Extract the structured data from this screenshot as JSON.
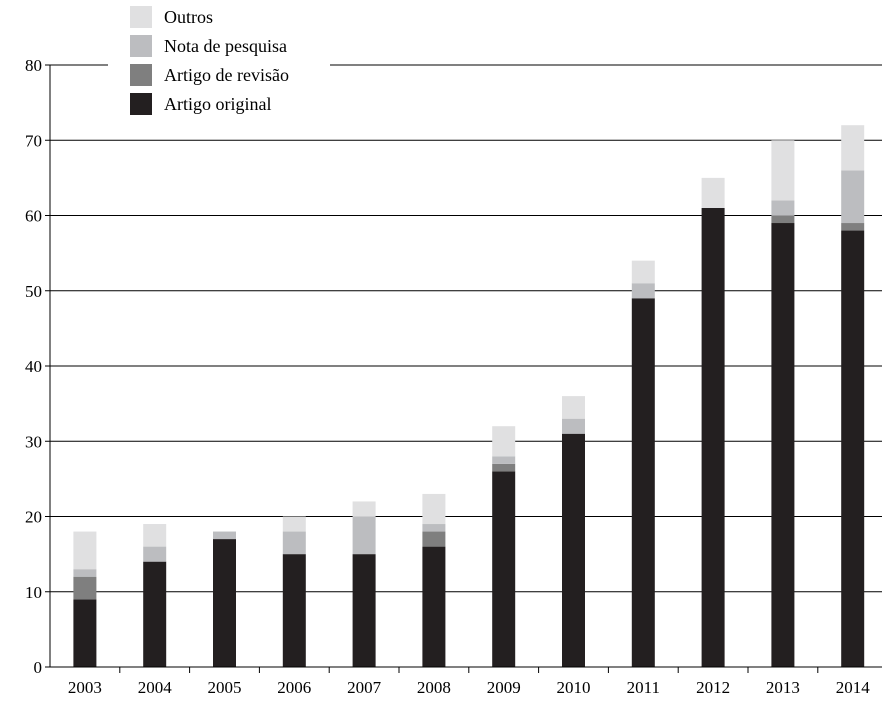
{
  "chart_data": {
    "type": "bar",
    "stacked": true,
    "title": "",
    "xlabel": "",
    "ylabel": "",
    "ylim": [
      0,
      80
    ],
    "yticks": [
      0,
      10,
      20,
      30,
      40,
      50,
      60,
      70,
      80
    ],
    "grid": "horizontal",
    "legend_position": "top-left",
    "categories": [
      "2003",
      "2004",
      "2005",
      "2006",
      "2007",
      "2008",
      "2009",
      "2010",
      "2011",
      "2012",
      "2013",
      "2014"
    ],
    "series": [
      {
        "name": "Artigo original",
        "color": "#231f20",
        "values": [
          9,
          14,
          17,
          15,
          15,
          16,
          26,
          31,
          49,
          61,
          59,
          58
        ]
      },
      {
        "name": "Artigo de revisão",
        "color": "#7f7f7f",
        "values": [
          3,
          0,
          0,
          0,
          0,
          2,
          1,
          0,
          0,
          0,
          1,
          1
        ]
      },
      {
        "name": "Nota de pesquisa",
        "color": "#bcbdc0",
        "values": [
          1,
          2,
          1,
          3,
          5,
          1,
          1,
          2,
          2,
          0,
          2,
          7
        ]
      },
      {
        "name": "Outros",
        "color": "#e0e0e1",
        "values": [
          5,
          3,
          0,
          2,
          2,
          4,
          4,
          3,
          3,
          4,
          8,
          6
        ]
      }
    ],
    "legend_order": [
      "Outros",
      "Nota de pesquisa",
      "Artigo de revisão",
      "Artigo original"
    ]
  }
}
